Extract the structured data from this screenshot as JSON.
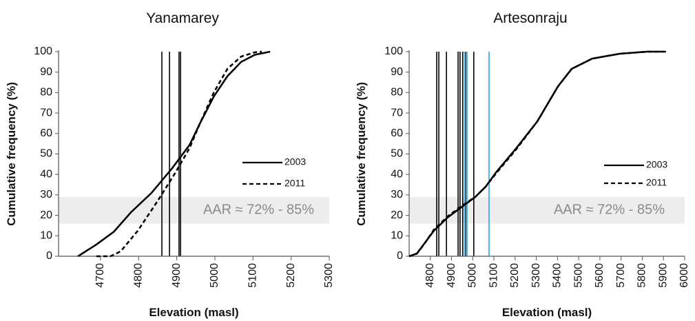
{
  "chart_data": [
    {
      "type": "line",
      "title": "Yanamarey",
      "xlabel": "Elevation (masl)",
      "ylabel": "Cumulative frequency (%)",
      "xlim": [
        4590,
        5300
      ],
      "xticks": [
        4700,
        4800,
        4900,
        5000,
        5100,
        5200,
        5300
      ],
      "ylim": [
        0,
        100
      ],
      "yticks": [
        0,
        10,
        20,
        30,
        40,
        50,
        60,
        70,
        80,
        90,
        100
      ],
      "series": [
        {
          "name": "2003",
          "color": "#000000",
          "dash": false,
          "x": [
            4641,
            4689,
            4735,
            4780,
            4834,
            4888,
            4934,
            4961,
            4997,
            5033,
            5069,
            5105,
            5145
          ],
          "values": [
            0,
            5.7,
            12,
            21.5,
            31,
            43,
            54.5,
            65,
            78,
            88,
            95,
            98.5,
            100
          ]
        },
        {
          "name": "2011",
          "color": "#000000",
          "dash": true,
          "x": [
            4689,
            4726,
            4753,
            4798,
            4852,
            4897,
            4934,
            4961,
            4997,
            5033,
            5069,
            5105,
            5123
          ],
          "values": [
            0,
            0,
            2.4,
            12.5,
            27.6,
            41,
            53,
            65,
            80,
            91.6,
            97.6,
            99.7,
            100
          ]
        }
      ],
      "vlines": [
        {
          "x": 4861,
          "color": "#000000"
        },
        {
          "x": 4881,
          "color": "#000000"
        },
        {
          "x": 4906,
          "color": "#000000"
        },
        {
          "x": 4910,
          "color": "#000000"
        }
      ],
      "band": [
        16,
        29
      ],
      "band_color": "#ededed",
      "annotation": "AAR ≈ 72% - 85%"
    },
    {
      "type": "line",
      "title": "Artesonraju",
      "xlabel": "Elevation (masl)",
      "ylabel": "Cumulative frequency (%)",
      "xlim": [
        4700,
        6000
      ],
      "xticks": [
        4800,
        4900,
        5000,
        5100,
        5200,
        5300,
        5400,
        5500,
        5600,
        5700,
        5800,
        5900,
        6000
      ],
      "ylim": [
        0,
        100
      ],
      "yticks": [
        0,
        10,
        20,
        30,
        40,
        50,
        60,
        70,
        80,
        90,
        100
      ],
      "series": [
        {
          "name": "2003",
          "color": "#000000",
          "dash": false,
          "x": [
            4700,
            4736,
            4768,
            4817,
            4882,
            4947,
            5012,
            5061,
            5110,
            5207,
            5305,
            5402,
            5467,
            5564,
            5694,
            5824,
            5900
          ],
          "values": [
            0,
            1.3,
            5.7,
            12.5,
            19,
            24,
            29,
            34,
            41,
            53,
            66,
            83,
            91.6,
            96.6,
            99,
            100,
            100
          ]
        },
        {
          "name": "2011",
          "color": "#000000",
          "dash": true,
          "x": [
            4700,
            4736,
            4768,
            4817,
            4882,
            4947,
            5012,
            5061,
            5110,
            5207,
            5305,
            5402,
            5467,
            5564,
            5694,
            5824,
            5922
          ],
          "values": [
            0,
            1.2,
            5.5,
            13,
            19.5,
            24.5,
            29,
            34,
            40.5,
            52.5,
            66,
            83,
            91.6,
            96.6,
            99,
            100,
            100
          ]
        }
      ],
      "vlines": [
        {
          "x": 4830,
          "color": "#000000"
        },
        {
          "x": 4840,
          "color": "#000000"
        },
        {
          "x": 4876,
          "color": "#000000"
        },
        {
          "x": 4931,
          "color": "#000000"
        },
        {
          "x": 4940,
          "color": "#000000"
        },
        {
          "x": 4953,
          "color": "#000000"
        },
        {
          "x": 4966,
          "color": "#000000"
        },
        {
          "x": 5005,
          "color": "#000000"
        },
        {
          "x": 4963,
          "color": "#29a3dc"
        },
        {
          "x": 4973,
          "color": "#29a3dc"
        },
        {
          "x": 5077,
          "color": "#29a3dc"
        }
      ],
      "band": [
        16,
        29
      ],
      "band_color": "#ededed",
      "annotation": "AAR ≈ 72% - 85%"
    }
  ]
}
